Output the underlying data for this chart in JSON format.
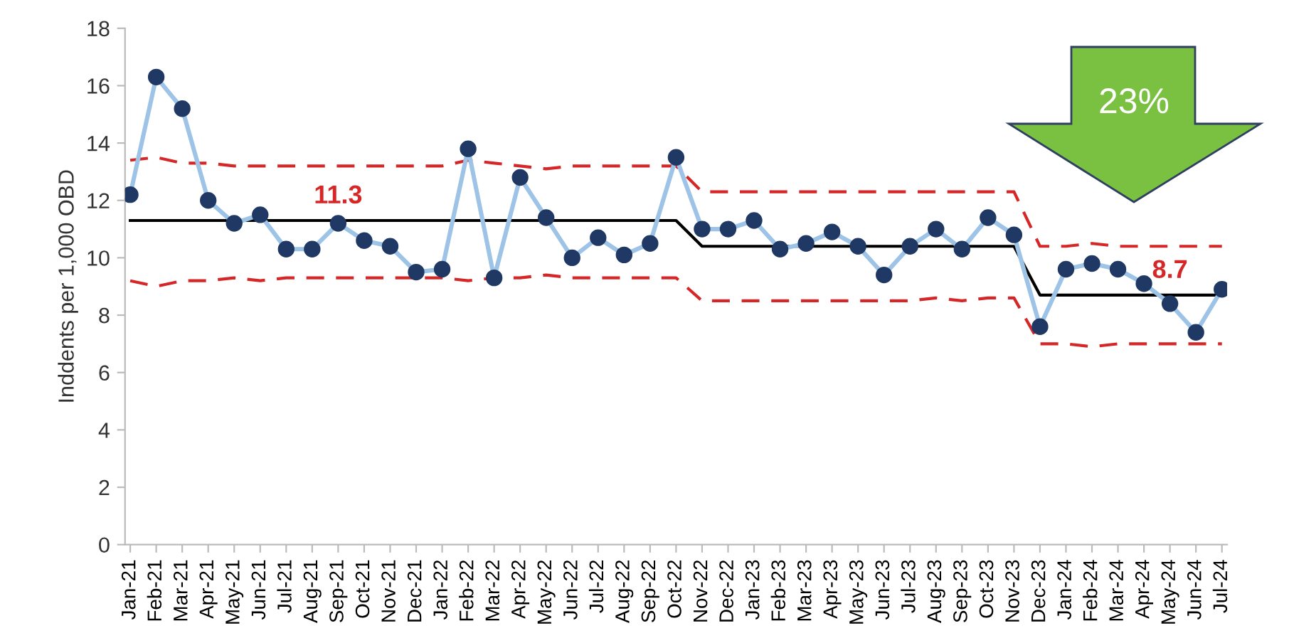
{
  "chart_data": {
    "type": "line",
    "ylabel": "Inddents per 1,000 OBD",
    "categories": [
      "Jan-21",
      "Feb-21",
      "Mar-21",
      "Apr-21",
      "May-21",
      "Jun-21",
      "Jul-21",
      "Aug-21",
      "Sep-21",
      "Oct-21",
      "Nov-21",
      "Dec-21",
      "Jan-22",
      "Feb-22",
      "Mar-22",
      "Apr-22",
      "May-22",
      "Jun-22",
      "Jul-22",
      "Aug-22",
      "Sep-22",
      "Oct-22",
      "Nov-22",
      "Dec-22",
      "Jan-23",
      "Feb-23",
      "Mar-23",
      "Apr-23",
      "May-23",
      "Jun-23",
      "Jul-23",
      "Aug-23",
      "Sep-23",
      "Oct-23",
      "Nov-23",
      "Dec-23",
      "Jan-24",
      "Feb-24",
      "Mar-24",
      "Apr-24",
      "May-24",
      "Jun-24",
      "Jul-24"
    ],
    "series": [
      {
        "color": "#d62728",
        "line_style": "dashed",
        "marker": "none",
        "values": [
          13.4,
          13.5,
          13.3,
          13.3,
          13.2,
          13.2,
          13.2,
          13.2,
          13.2,
          13.2,
          13.2,
          13.2,
          13.2,
          13.4,
          13.3,
          13.2,
          13.1,
          13.2,
          13.2,
          13.2,
          13.2,
          13.2,
          12.3,
          12.3,
          12.3,
          12.3,
          12.3,
          12.3,
          12.3,
          12.3,
          12.3,
          12.3,
          12.3,
          12.3,
          12.3,
          10.4,
          10.4,
          10.5,
          10.4,
          10.4,
          10.4,
          10.4,
          10.4
        ]
      },
      {
        "color": "#d62728",
        "line_style": "dashed",
        "marker": "none",
        "values": [
          9.2,
          9.0,
          9.2,
          9.2,
          9.3,
          9.2,
          9.3,
          9.3,
          9.3,
          9.3,
          9.3,
          9.3,
          9.3,
          9.2,
          9.3,
          9.3,
          9.4,
          9.3,
          9.3,
          9.3,
          9.3,
          9.3,
          8.5,
          8.5,
          8.5,
          8.5,
          8.5,
          8.5,
          8.5,
          8.5,
          8.5,
          8.6,
          8.5,
          8.6,
          8.6,
          7.0,
          7.0,
          6.9,
          7.0,
          7.0,
          7.0,
          7.0,
          7.0
        ]
      },
      {
        "color": "#000000",
        "line_style": "solid",
        "marker": "none",
        "values": [
          11.3,
          11.3,
          11.3,
          11.3,
          11.3,
          11.3,
          11.3,
          11.3,
          11.3,
          11.3,
          11.3,
          11.3,
          11.3,
          11.3,
          11.3,
          11.3,
          11.3,
          11.3,
          11.3,
          11.3,
          11.3,
          11.3,
          10.4,
          10.4,
          10.4,
          10.4,
          10.4,
          10.4,
          10.4,
          10.4,
          10.4,
          10.4,
          10.4,
          10.4,
          10.4,
          8.7,
          8.7,
          8.7,
          8.7,
          8.7,
          8.7,
          8.7,
          8.7
        ]
      },
      {
        "color": "#9dc3e6",
        "line_style": "solid",
        "marker": "circle",
        "colors": [
          "#1f3864",
          "#1f3864",
          "#1f3864",
          "#1f3864",
          "#1f3864",
          "#1f3864",
          "#1f3864",
          "#1f3864",
          "#1f3864",
          "#1f3864",
          "#1f3864",
          "#1f3864",
          "#1f3864",
          "#1f3864",
          "#1f3864",
          "#1f3864",
          "#1f3864",
          "#1f3864",
          "#1f3864",
          "#1f3864",
          "#1f3864",
          "#1f3864",
          "#1f3864",
          "#1f3864",
          "#1f3864",
          "#1f3864",
          "#1f3864",
          "#1f3864",
          "#1f3864",
          "#1f3864",
          "#1f3864",
          "#1f3864",
          "#1f3864",
          "#1f3864",
          "#1f3864",
          "#1f3864",
          "#1f3864",
          "#1f3864",
          "#1f3864",
          "#1f3864",
          "#1f3864",
          "#1f3864",
          "#1f3864"
        ],
        "values": [
          12.2,
          16.3,
          15.2,
          12.0,
          11.2,
          11.5,
          10.3,
          10.3,
          11.2,
          10.6,
          10.4,
          9.5,
          9.6,
          13.8,
          9.3,
          12.8,
          11.4,
          10.0,
          10.7,
          10.1,
          10.5,
          13.5,
          11.0,
          11.0,
          11.3,
          10.3,
          10.5,
          10.9,
          10.4,
          9.4,
          10.4,
          11.0,
          10.3,
          11.4,
          10.8,
          7.6,
          9.6,
          9.8,
          9.6,
          9.1,
          8.4,
          7.4,
          8.9
        ]
      }
    ],
    "ylim": [
      0,
      18
    ],
    "yticks": [
      0,
      2,
      4,
      6,
      8,
      10,
      12,
      14,
      16,
      18
    ],
    "grid": false,
    "legend": false,
    "annotations": [
      {
        "text": "11.3",
        "x": "Sep-21",
        "y": 11.3
      },
      {
        "text": "8.7",
        "x": "May-24",
        "y": 8.7
      },
      "23%"
    ]
  }
}
